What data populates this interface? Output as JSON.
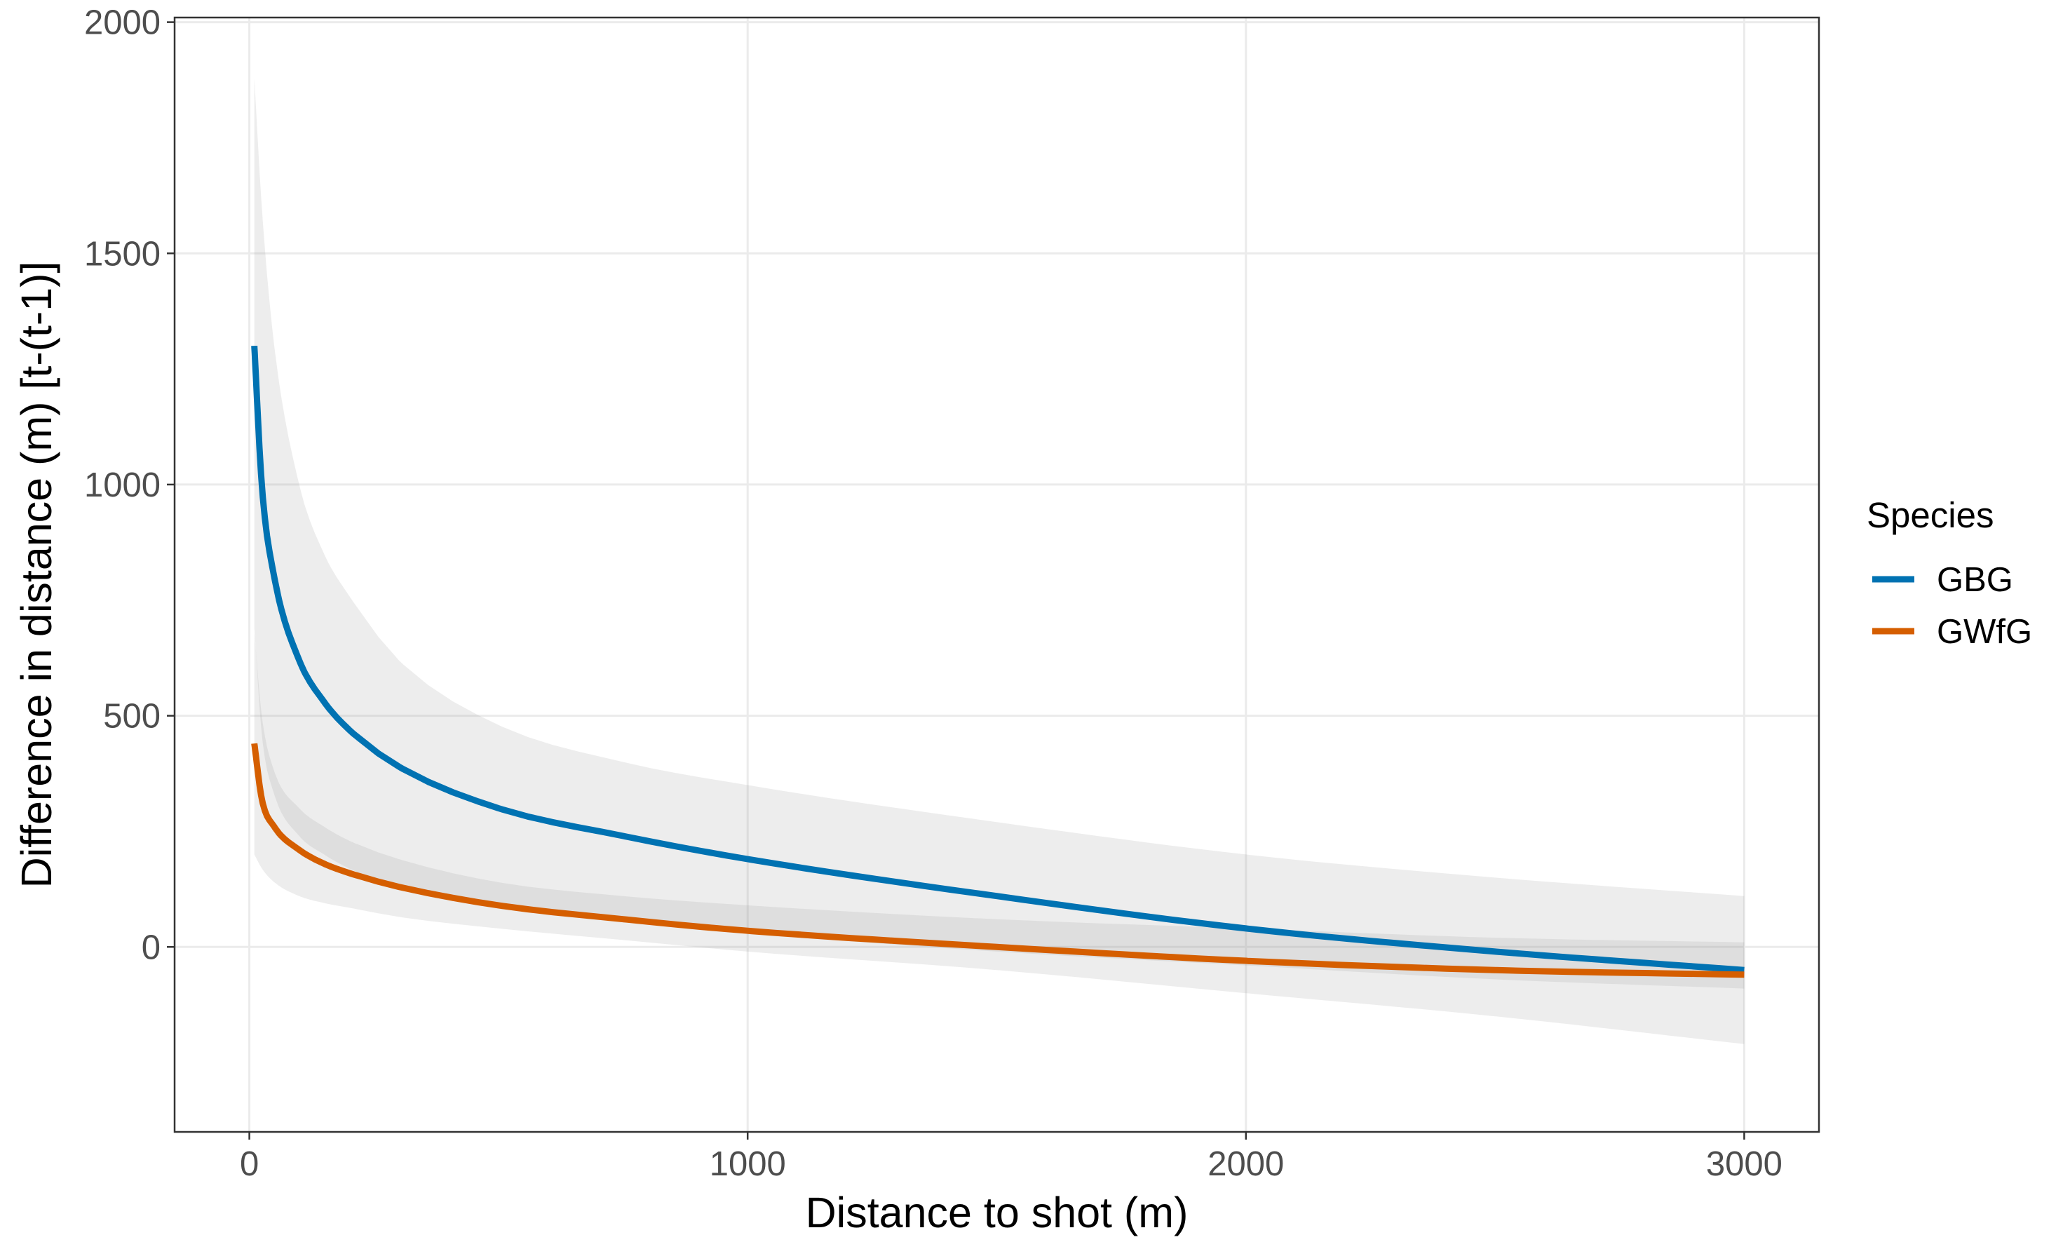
{
  "chart_data": {
    "type": "line",
    "xlabel": "Distance to shot (m)",
    "ylabel": "Difference in distance (m) [t-(t-1)]",
    "xlim": [
      -150,
      3150
    ],
    "ylim": [
      -400,
      2010
    ],
    "xticks": [
      0,
      1000,
      2000,
      3000
    ],
    "yticks": [
      0,
      500,
      1000,
      1500,
      2000
    ],
    "xtick_labels": [
      "0",
      "1000",
      "2000",
      "3000"
    ],
    "ytick_labels": [
      "0",
      "500",
      "1000",
      "1500",
      "2000"
    ],
    "grid": true,
    "legend": {
      "title": "Species",
      "placement": "right"
    },
    "series": [
      {
        "name": "GBG",
        "color": "#0072B2",
        "x": [
          10,
          25,
          50,
          100,
          150,
          200,
          300,
          500,
          750,
          1000,
          1500,
          2000,
          2500,
          3000
        ],
        "y": [
          1300,
          1000,
          800,
          620,
          530,
          470,
          390,
          300,
          240,
          190,
          110,
          40,
          -10,
          -50
        ],
        "ci_lower": [
          690,
          460,
          330,
          240,
          200,
          170,
          130,
          90,
          55,
          30,
          -10,
          -40,
          -70,
          -90
        ],
        "ci_upper": [
          1880,
          1600,
          1300,
          1000,
          850,
          760,
          620,
          480,
          400,
          350,
          270,
          200,
          150,
          110
        ]
      },
      {
        "name": "GWfG",
        "color": "#D55E00",
        "x": [
          10,
          25,
          50,
          100,
          150,
          200,
          300,
          500,
          750,
          1000,
          1500,
          2000,
          2500,
          3000
        ],
        "y": [
          440,
          320,
          260,
          210,
          180,
          160,
          130,
          90,
          60,
          35,
          0,
          -30,
          -50,
          -60
        ],
        "ci_lower": [
          200,
          170,
          140,
          110,
          95,
          85,
          65,
          40,
          15,
          -10,
          -50,
          -100,
          -150,
          -210
        ],
        "ci_upper": [
          680,
          500,
          380,
          300,
          260,
          230,
          190,
          140,
          110,
          90,
          60,
          40,
          20,
          10
        ]
      }
    ]
  }
}
